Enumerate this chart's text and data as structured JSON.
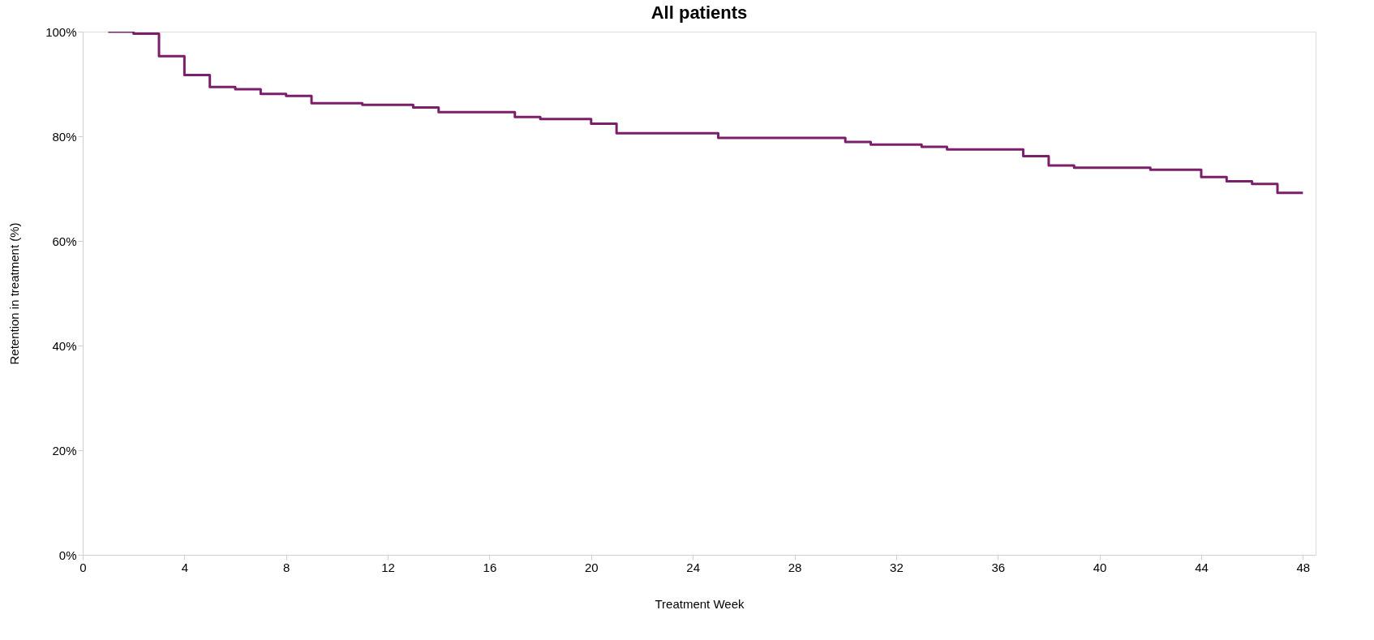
{
  "chart_data": {
    "type": "step",
    "title": "All patients",
    "xlabel": "Treatment Week",
    "ylabel": "Retention in treatment (%)",
    "x": [
      1,
      2,
      3,
      4,
      5,
      6,
      7,
      8,
      9,
      11,
      13,
      14,
      17,
      18,
      20,
      21,
      25,
      30,
      31,
      33,
      34,
      37,
      38,
      39,
      42,
      44,
      45,
      46,
      47,
      48
    ],
    "series": [
      {
        "color": "#7b1f6a",
        "values": [
          100,
          99.6,
          95.3,
          91.7,
          89.4,
          89.0,
          88.1,
          87.7,
          86.3,
          86.0,
          85.5,
          84.6,
          83.7,
          83.3,
          82.4,
          80.6,
          79.7,
          78.9,
          78.4,
          78.0,
          77.5,
          76.2,
          74.4,
          74.0,
          73.6,
          72.2,
          71.4,
          70.9,
          69.2,
          69.2
        ]
      }
    ],
    "xlim": [
      0,
      48.5
    ],
    "xticks": [
      0,
      4,
      8,
      12,
      16,
      20,
      24,
      28,
      32,
      36,
      40,
      44,
      48
    ],
    "ylim": [
      0,
      100
    ],
    "yticks": [
      {
        "value": 0,
        "label": "0%"
      },
      {
        "value": 20,
        "label": "20%"
      },
      {
        "value": 40,
        "label": "40%"
      },
      {
        "value": 60,
        "label": "60%"
      },
      {
        "value": 80,
        "label": "80%"
      },
      {
        "value": 100,
        "label": "100%"
      }
    ],
    "grid": false,
    "marker": "none",
    "line_style": "solid"
  }
}
